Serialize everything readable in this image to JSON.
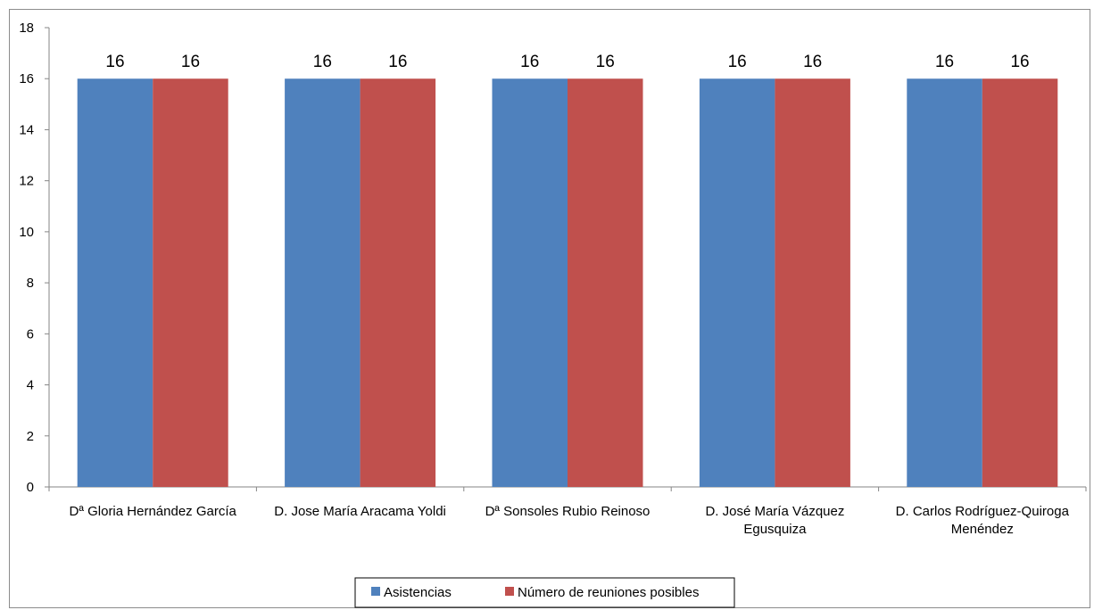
{
  "chart_data": {
    "type": "bar",
    "categories": [
      [
        "Dª Gloria Hernández García"
      ],
      [
        "D. Jose María Aracama Yoldi"
      ],
      [
        "Dª Sonsoles Rubio Reinoso"
      ],
      [
        "D. José María Vázquez",
        "Egusquiza"
      ],
      [
        "D. Carlos Rodríguez-Quiroga",
        "Menéndez"
      ]
    ],
    "series": [
      {
        "name": "Asistencias",
        "values": [
          16,
          16,
          16,
          16,
          16
        ],
        "color": "#4F81BD"
      },
      {
        "name": "Número de reuniones posibles",
        "values": [
          16,
          16,
          16,
          16,
          16
        ],
        "color": "#C0504D"
      }
    ],
    "yticks": [
      0,
      2,
      4,
      6,
      8,
      10,
      12,
      14,
      16,
      18
    ],
    "ylim": [
      0,
      18
    ],
    "data_labels": true,
    "grid": false,
    "legend_position": "bottom"
  }
}
